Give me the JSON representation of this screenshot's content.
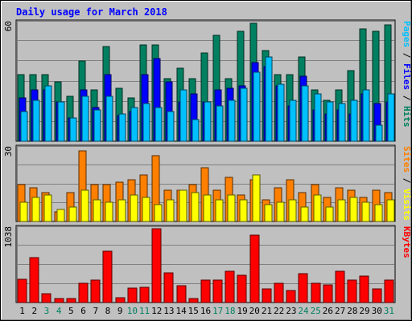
{
  "chart_data": {
    "type": "bar",
    "title": "Daily usage for March 2018",
    "x": [
      1,
      2,
      3,
      4,
      5,
      6,
      7,
      8,
      9,
      10,
      11,
      12,
      13,
      14,
      15,
      16,
      17,
      18,
      19,
      20,
      21,
      22,
      23,
      24,
      25,
      26,
      27,
      28,
      29,
      30,
      31
    ],
    "weekend_days": [
      3,
      4,
      10,
      11,
      17,
      18,
      24,
      25,
      31
    ],
    "panels": [
      {
        "name": "pages-files-hits",
        "ylim": [
          0,
          60
        ],
        "ymax_label": "60",
        "side_label": [
          {
            "text": "Pages",
            "color": "#00c0ff"
          },
          {
            "text": " / ",
            "color": "#000000"
          },
          {
            "text": "Files",
            "color": "#0000ff"
          },
          {
            "text": " / ",
            "color": "#000000"
          },
          {
            "text": "Hits",
            "color": "#008060"
          }
        ],
        "series": [
          {
            "name": "Hits",
            "color": "#008060",
            "values": [
              34,
              34,
              34,
              30,
              23,
              41,
              26,
              48,
              27,
              22,
              49,
              49,
              32,
              37,
              32,
              45,
              54,
              32,
              56,
              60,
              46,
              34,
              34,
              43,
              26,
              21,
              26,
              36,
              57,
              56,
              59
            ]
          },
          {
            "name": "Files",
            "color": "#0000ff",
            "values": [
              22,
              26,
              26,
              20,
              12,
              26,
              17,
              34,
              13,
              15,
              34,
              42,
              30,
              20,
              24,
              20,
              26,
              27,
              28,
              40,
              38,
              28,
              18,
              33,
              16,
              14,
              16,
              14,
              24,
              19,
              20
            ]
          },
          {
            "name": "Pages",
            "color": "#00c0ff",
            "values": [
              15,
              21,
              28,
              20,
              12,
              23,
              16,
              23,
              14,
              17,
              19,
              17,
              15,
              26,
              11,
              20,
              18,
              21,
              27,
              35,
              43,
              29,
              21,
              28,
              24,
              20,
              19,
              21,
              26,
              8,
              24
            ]
          }
        ]
      },
      {
        "name": "sites-visits",
        "ylim": [
          0,
          30
        ],
        "ymax_label": "30",
        "side_label": [
          {
            "text": "Sites",
            "color": "#ff8000"
          },
          {
            "text": " / ",
            "color": "#000000"
          },
          {
            "text": "Visits",
            "color": "#ffff00"
          }
        ],
        "series": [
          {
            "name": "Visits",
            "color": "#ff8000",
            "values": [
              15,
              14,
              12,
              4,
              12,
              29,
              15,
              15,
              16,
              17,
              19,
              27,
              13,
              13,
              15,
              22,
              13,
              18,
              11,
              17,
              9,
              14,
              17,
              12,
              15,
              10,
              14,
              13,
              10,
              13,
              12
            ]
          },
          {
            "name": "Sites",
            "color": "#ffff00",
            "values": [
              8,
              10,
              11,
              5,
              6,
              13,
              9,
              8,
              9,
              11,
              10,
              7,
              9,
              13,
              12,
              11,
              9,
              11,
              9,
              19,
              7,
              8,
              9,
              6,
              11,
              6,
              9,
              10,
              8,
              7,
              9
            ]
          }
        ]
      },
      {
        "name": "kbytes",
        "ylim": [
          0,
          1038
        ],
        "ymax_label": "1038",
        "side_label": [
          {
            "text": "KBytes",
            "color": "#ff0000"
          }
        ],
        "series": [
          {
            "name": "KBytes",
            "color": "#ff0000",
            "values": [
              322,
              631,
              121,
              59,
              54,
              276,
              321,
              722,
              70,
              202,
              217,
              1038,
              416,
              237,
              55,
              314,
              311,
              437,
              386,
              950,
              194,
              272,
              165,
              406,
              270,
              247,
              445,
              311,
              371,
              189,
              314
            ]
          }
        ]
      }
    ]
  }
}
